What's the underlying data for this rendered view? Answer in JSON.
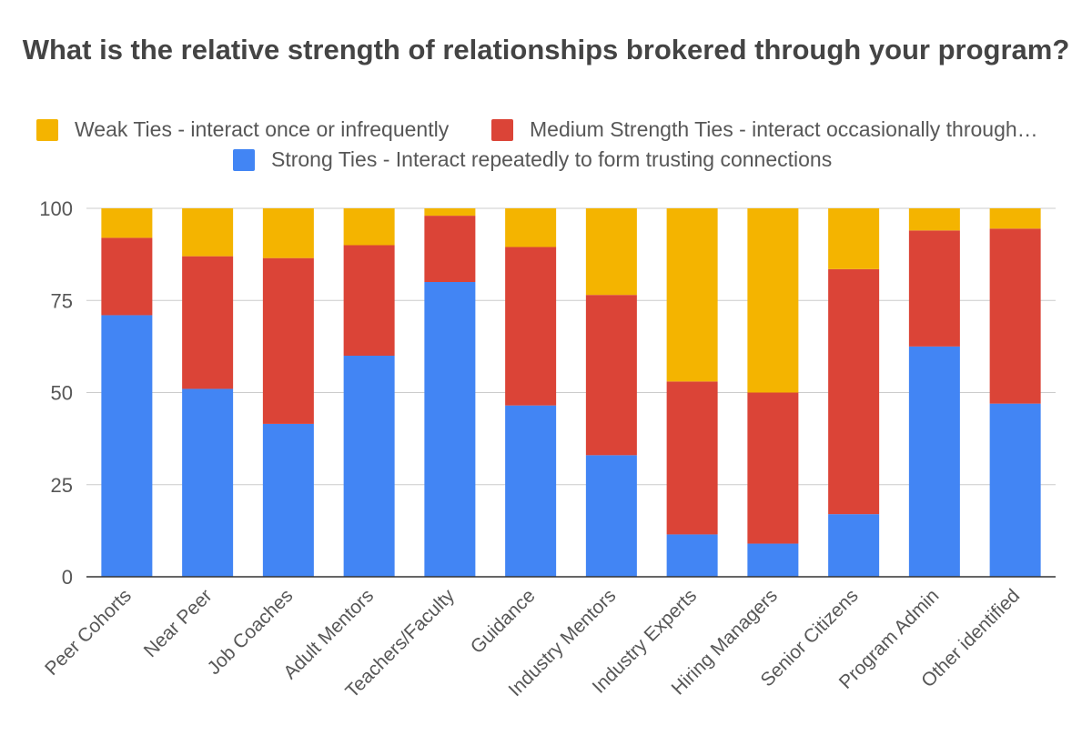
{
  "chart_data": {
    "type": "bar",
    "stacked": true,
    "title": "What is the relative strength of relationships brokered through your program?",
    "xlabel": "",
    "ylabel": "",
    "ylim": [
      0,
      100
    ],
    "yticks": [
      0,
      25,
      50,
      75,
      100
    ],
    "grid": true,
    "legend_position": "top",
    "categories": [
      "Peer Cohorts",
      "Near Peer",
      "Job Coaches",
      "Adult Mentors",
      "Teachers/Faculty",
      "Guidance",
      "Industry Mentors",
      "Industry Experts",
      "Hiring Managers",
      "Senior Citizens",
      "Program Admin",
      "Other identified"
    ],
    "series": [
      {
        "name": "Strong Ties - Interact repeatedly to form trusting connections",
        "color": "#4285f4",
        "values": [
          71,
          51,
          41.5,
          60,
          80,
          46.5,
          33,
          11.5,
          9,
          17,
          62.5,
          47
        ]
      },
      {
        "name": "Medium Strength Ties - interact occasionally through…",
        "color": "#db4437",
        "values": [
          21,
          36,
          45,
          30,
          18,
          43,
          43.5,
          41.5,
          41,
          66.5,
          31.5,
          47.5
        ]
      },
      {
        "name": "Weak Ties - interact once or infrequently",
        "color": "#f4b400",
        "values": [
          8,
          13,
          13.5,
          10,
          2,
          10.5,
          23.5,
          47,
          50,
          16.5,
          6,
          5.5
        ]
      }
    ]
  }
}
